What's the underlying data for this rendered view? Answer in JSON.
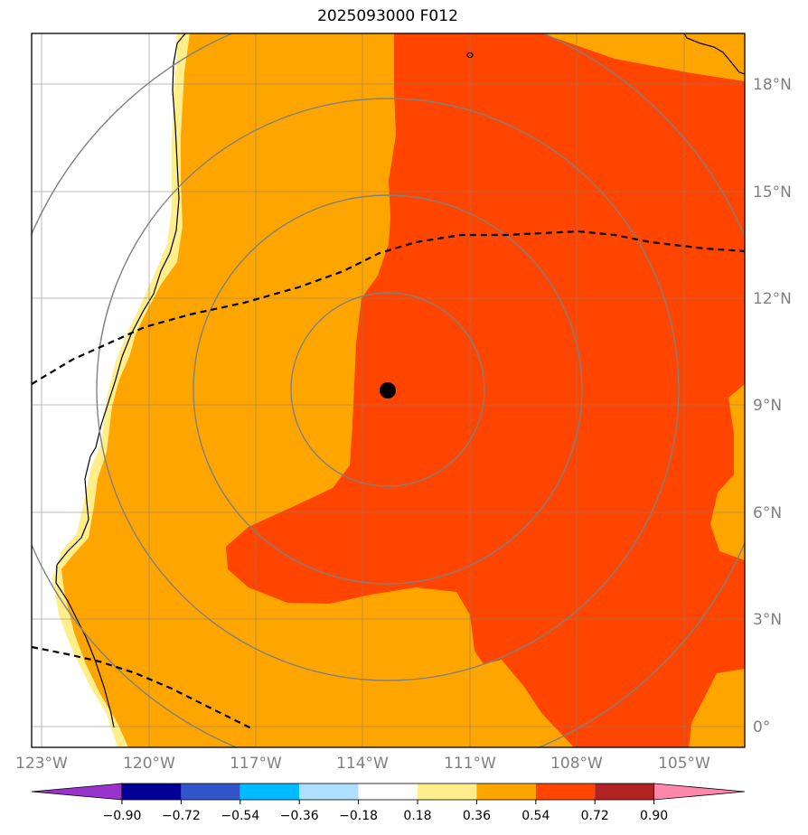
{
  "title": "2025093000 F012",
  "map": {
    "lon_labels": [
      "123°W",
      "120°W",
      "117°W",
      "114°W",
      "111°W",
      "108°W",
      "105°W"
    ],
    "lat_labels": [
      "18°N",
      "15°N",
      "12°N",
      "9°N",
      "6°N",
      "3°N",
      "0°"
    ],
    "center_marker": {
      "lon": -113.3,
      "lat": 9.3
    },
    "range_rings": 4
  },
  "colorbar": {
    "labels": [
      "−0.90",
      "−0.72",
      "−0.54",
      "−0.36",
      "−0.18",
      "0.18",
      "0.36",
      "0.54",
      "0.72",
      "0.90"
    ],
    "colors": {
      "below": "#9933CC",
      "bins": [
        "#000099",
        "#3355CC",
        "#00BBFF",
        "#AEDFFF",
        "#FFFFFF",
        "#FFEE8A",
        "#FFA500",
        "#FF4500",
        "#B22222"
      ],
      "above": "#FF88AA"
    }
  },
  "fill_colors": {
    "light": "#FFEE8A",
    "mid": "#FFA500",
    "high": "#FF4500",
    "grid": "#808080"
  }
}
